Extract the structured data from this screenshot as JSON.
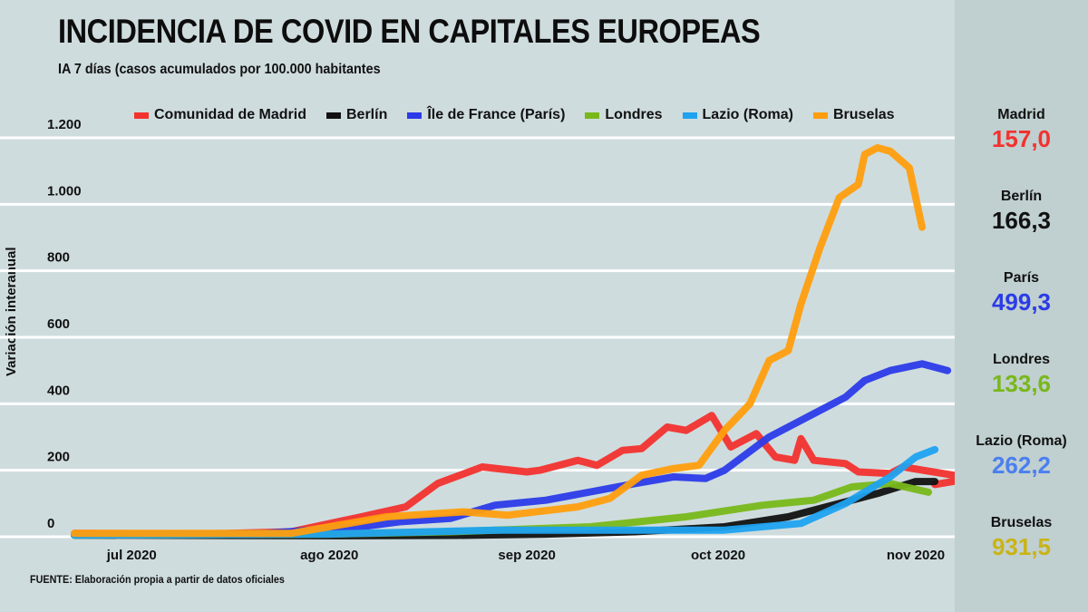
{
  "header": {
    "title": "INCIDENCIA DE COVID EN CAPITALES EUROPEAS",
    "subtitle": "IA 7 días (casos acumulados por 100.000 habitantes"
  },
  "source": "FUENTE: Elaboración propia a partir de datos oficiales",
  "side_panel": [
    {
      "name": "Madrid",
      "value": "157,0",
      "color": "#f2322e"
    },
    {
      "name": "Berlín",
      "value": "166,3",
      "color": "#111111"
    },
    {
      "name": "París",
      "value": "499,3",
      "color": "#2b3be8"
    },
    {
      "name": "Londres",
      "value": "133,6",
      "color": "#78b81a"
    },
    {
      "name": "Lazio (Roma)",
      "value": "262,2",
      "color": "#4a7ff0"
    },
    {
      "name": "Bruselas",
      "value": "931,5",
      "color": "#c9b417"
    }
  ],
  "chart_data": {
    "type": "line",
    "title": "INCIDENCIA DE COVID EN CAPITALES EUROPEAS",
    "subtitle": "IA 7 días (casos acumulados por 100.000 habitantes",
    "xlabel": "",
    "ylabel": "Variación interanual",
    "ylim": [
      0,
      1200
    ],
    "yticks": [
      0,
      200,
      400,
      600,
      800,
      1000,
      1200
    ],
    "ytick_labels": [
      "0",
      "200",
      "400",
      "600",
      "800",
      "1.000",
      "1.200"
    ],
    "x_unit": "days since 2020-06-22",
    "xlim": [
      0,
      136
    ],
    "xticks": [
      9,
      40,
      71,
      101,
      132
    ],
    "xtick_labels": [
      "jul 2020",
      "ago 2020",
      "sep 2020",
      "oct 2020",
      "nov 2020"
    ],
    "grid": "horizontal",
    "legend_position": "top",
    "series": [
      {
        "name": "Comunidad de Madrid",
        "color": "#f2322e",
        "x": [
          0,
          20,
          34,
          45,
          52,
          57,
          64,
          71,
          73,
          79,
          82,
          86,
          89,
          93,
          96,
          100,
          103,
          107,
          110,
          113,
          114,
          116,
          121,
          123,
          128,
          130,
          138,
          142,
          135
        ],
        "y": [
          10,
          8,
          15,
          60,
          90,
          160,
          210,
          195,
          200,
          230,
          215,
          260,
          265,
          330,
          320,
          365,
          270,
          310,
          240,
          230,
          295,
          230,
          220,
          195,
          190,
          210,
          185,
          180,
          157
        ]
      },
      {
        "name": "Berlín",
        "color": "#111111",
        "x": [
          0,
          40,
          60,
          74,
          88,
          102,
          112,
          118,
          126,
          132,
          135
        ],
        "y": [
          5,
          3,
          4,
          8,
          15,
          30,
          60,
          90,
          130,
          166,
          166
        ]
      },
      {
        "name": "Île de France (París)",
        "color": "#2b3be8",
        "x": [
          0,
          30,
          45,
          51,
          59,
          66,
          74,
          81,
          88,
          94,
          99,
          102,
          109,
          116,
          121,
          124,
          128,
          133,
          137
        ],
        "y": [
          5,
          10,
          30,
          45,
          55,
          95,
          110,
          135,
          160,
          180,
          175,
          200,
          300,
          370,
          420,
          470,
          500,
          520,
          500
        ]
      },
      {
        "name": "Londres",
        "color": "#78b81a",
        "x": [
          0,
          40,
          59,
          81,
          96,
          108,
          116,
          122,
          128,
          134
        ],
        "y": [
          5,
          8,
          15,
          30,
          60,
          95,
          110,
          150,
          160,
          134
        ]
      },
      {
        "name": "Lazio (Roma)",
        "color": "#1fa2f0",
        "x": [
          0,
          40,
          66,
          102,
          114,
          121,
          128,
          132,
          135
        ],
        "y": [
          5,
          8,
          20,
          20,
          40,
          100,
          180,
          240,
          262
        ]
      },
      {
        "name": "Bruselas",
        "color": "#ff9e0d",
        "x": [
          0,
          34,
          49,
          61,
          68,
          79,
          84,
          89,
          94,
          98,
          102,
          106,
          109,
          112,
          114,
          117,
          120,
          123,
          124,
          126,
          128,
          131,
          133
        ],
        "y": [
          10,
          10,
          60,
          75,
          65,
          90,
          115,
          185,
          205,
          215,
          320,
          400,
          530,
          560,
          700,
          870,
          1020,
          1060,
          1150,
          1170,
          1160,
          1110,
          931
        ]
      }
    ]
  }
}
